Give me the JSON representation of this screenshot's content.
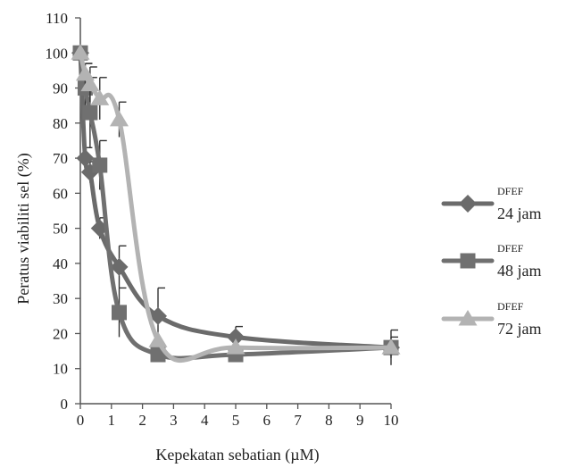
{
  "chart_data": {
    "type": "line",
    "title": "",
    "xlabel": "Kepekatan sebatian (µM)",
    "ylabel": "Peratus viabiliti sel (%)",
    "xlim": [
      0,
      10
    ],
    "ylim": [
      0,
      110
    ],
    "x_ticks": [
      0,
      1,
      2,
      3,
      4,
      5,
      6,
      7,
      8,
      9,
      10
    ],
    "y_ticks": [
      0,
      10,
      20,
      30,
      40,
      50,
      60,
      70,
      80,
      90,
      100,
      110
    ],
    "grid": false,
    "legend_position": "right",
    "series": [
      {
        "name": "DFEF 24 jam",
        "name_top": "DFEF",
        "name_bottom": "24 jam",
        "marker": "diamond",
        "color": "#6b6b6b",
        "x": [
          0,
          0.156,
          0.3125,
          0.625,
          1.25,
          2.5,
          5,
          10
        ],
        "y": [
          100,
          70,
          66,
          50,
          39,
          25,
          19,
          16
        ],
        "error": [
          0,
          3,
          3,
          3,
          6,
          8,
          3,
          3
        ]
      },
      {
        "name": "DFEF 48 jam",
        "name_top": "DFEF",
        "name_bottom": "48 jam",
        "marker": "square",
        "color": "#707070",
        "x": [
          0,
          0.156,
          0.3125,
          0.625,
          1.25,
          2.5,
          5,
          10
        ],
        "y": [
          100,
          90,
          83,
          68,
          26,
          14,
          14,
          16
        ],
        "error": [
          0,
          7,
          10,
          7,
          7,
          0,
          0,
          0
        ]
      },
      {
        "name": "DFEF 72 jam",
        "name_top": "DFEF",
        "name_bottom": "72 jam",
        "marker": "triangle",
        "color": "#b3b3b3",
        "x": [
          0,
          0.156,
          0.3125,
          0.625,
          1.25,
          2.5,
          5,
          10
        ],
        "y": [
          100,
          94,
          91,
          87,
          81,
          18,
          16,
          16
        ],
        "error": [
          0,
          3,
          5,
          6,
          5,
          0,
          0,
          5
        ]
      }
    ]
  }
}
